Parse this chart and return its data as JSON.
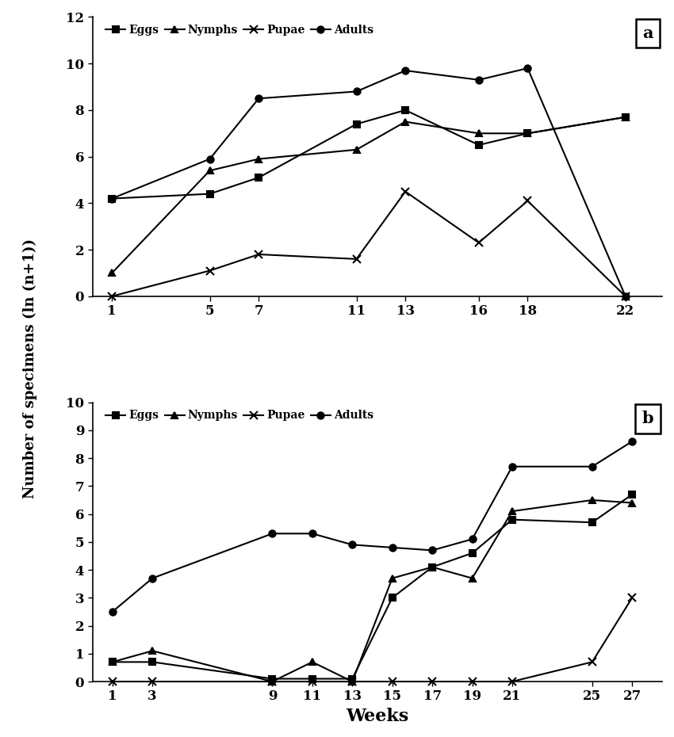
{
  "plot_a": {
    "weeks": [
      1,
      5,
      7,
      11,
      13,
      16,
      18,
      22
    ],
    "eggs": [
      4.2,
      4.4,
      5.1,
      7.4,
      8.0,
      6.5,
      7.0,
      7.7
    ],
    "nymphs": [
      1.0,
      5.4,
      5.9,
      6.3,
      7.5,
      7.0,
      7.0,
      7.7
    ],
    "pupae": [
      0.0,
      1.1,
      1.8,
      1.6,
      4.5,
      2.3,
      4.1,
      0.0
    ],
    "adults": [
      4.2,
      5.9,
      8.5,
      8.8,
      9.7,
      9.3,
      9.8,
      0.0
    ],
    "ylim": [
      0,
      12
    ],
    "yticks": [
      0,
      2,
      4,
      6,
      8,
      10,
      12
    ],
    "xlim": [
      0.2,
      23.5
    ],
    "label": "a"
  },
  "plot_b": {
    "weeks": [
      1,
      3,
      9,
      11,
      13,
      15,
      17,
      19,
      21,
      25,
      27
    ],
    "eggs": [
      0.7,
      0.7,
      0.1,
      0.1,
      0.1,
      3.0,
      4.1,
      4.6,
      5.8,
      5.7,
      6.7
    ],
    "nymphs": [
      0.7,
      1.1,
      0.0,
      0.7,
      0.0,
      3.7,
      4.1,
      3.7,
      6.1,
      6.5,
      6.4
    ],
    "pupae": [
      0.0,
      0.0,
      0.0,
      0.0,
      0.0,
      0.0,
      0.0,
      0.0,
      0.0,
      0.7,
      3.0
    ],
    "adults": [
      2.5,
      3.7,
      5.3,
      5.3,
      4.9,
      4.8,
      4.7,
      5.1,
      7.7,
      7.7,
      8.6
    ],
    "ylim": [
      0,
      10
    ],
    "yticks": [
      0,
      1,
      2,
      3,
      4,
      5,
      6,
      7,
      8,
      9,
      10
    ],
    "xlim": [
      0.0,
      28.5
    ],
    "label": "b"
  },
  "line_color": "#000000",
  "ylabel": "Number of specimens (ln (n+1))",
  "xlabel": "Weeks",
  "legend_labels": [
    "Eggs",
    "Nymphs",
    "Pupae",
    "Adults"
  ],
  "markers": [
    "s",
    "^",
    "x",
    "o"
  ],
  "label_fontsize": 13,
  "legend_fontsize": 10,
  "tick_fontsize": 12
}
